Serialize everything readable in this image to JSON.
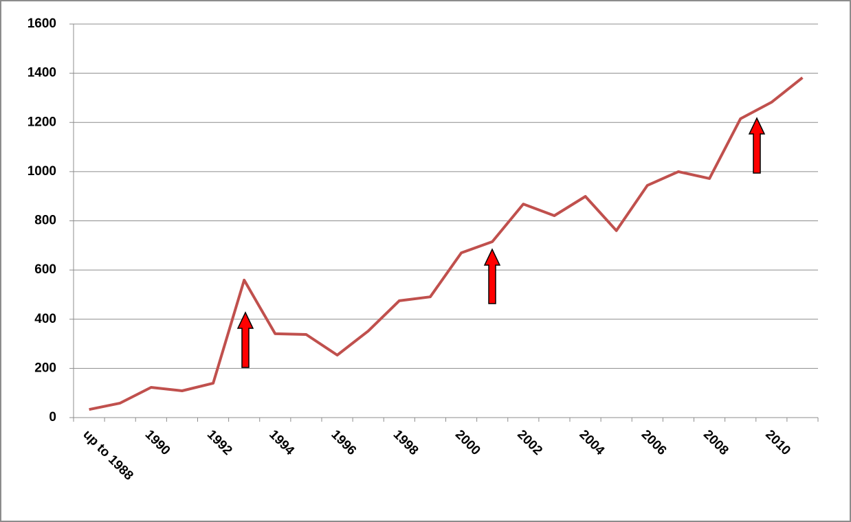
{
  "chart_data": {
    "type": "line",
    "categories": [
      "up to 1988",
      null,
      "1990",
      null,
      "1992",
      null,
      "1994",
      null,
      "1996",
      null,
      "1998",
      null,
      "2000",
      null,
      "2002",
      null,
      "2004",
      null,
      "2006",
      null,
      "2008",
      null,
      "2010",
      null
    ],
    "values": [
      33,
      59,
      123,
      109,
      140,
      559,
      341,
      338,
      254,
      352,
      475,
      491,
      670,
      715,
      868,
      821,
      899,
      760,
      944,
      1000,
      972,
      1215,
      1282,
      1382
    ],
    "color": "#c0504d",
    "ylim": [
      0,
      1600
    ],
    "yticks": [
      0,
      200,
      400,
      600,
      800,
      1000,
      1200,
      1400,
      1600
    ],
    "grid": true
  }
}
